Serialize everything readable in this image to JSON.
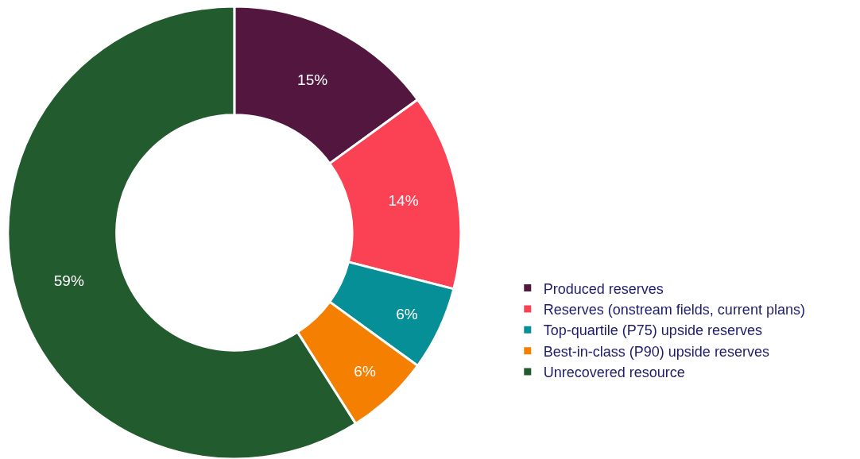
{
  "chart_data": {
    "type": "donut",
    "categories": [
      "Produced reserves",
      "Reserves (onstream fields, current plans)",
      "Top-quartile (P75) upside reserves",
      "Best-in-class (P90) upside reserves",
      "Unrecovered resource"
    ],
    "values": [
      15,
      14,
      6,
      6,
      59
    ],
    "colors": [
      "#53163f",
      "#fb4154",
      "#068f96",
      "#f47f00",
      "#215b2e"
    ],
    "value_labels": [
      "15%",
      "14%",
      "6%",
      "6%",
      "59%"
    ],
    "legend": "bottom right"
  }
}
